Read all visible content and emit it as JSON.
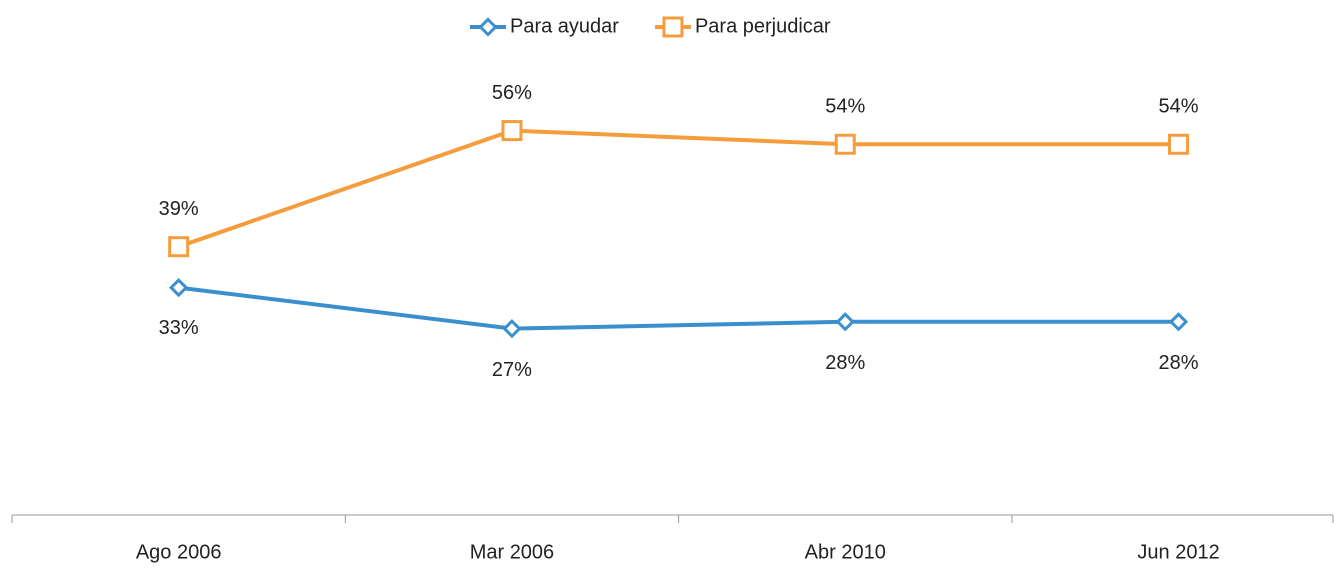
{
  "chart_data": {
    "type": "line",
    "categories": [
      "Ago 2006",
      "Mar 2006",
      "Abr 2010",
      "Jun 2012"
    ],
    "series": [
      {
        "name": "Para ayudar",
        "color": "#3a8fcf",
        "marker": "diamond",
        "values": [
          33,
          27,
          28,
          28
        ],
        "value_labels": [
          "33%",
          "27%",
          "28%",
          "28%"
        ]
      },
      {
        "name": "Para perjudicar",
        "color": "#f59d3d",
        "marker": "square",
        "values": [
          39,
          56,
          54,
          54
        ],
        "value_labels": [
          "39%",
          "56%",
          "54%",
          "54%"
        ]
      }
    ],
    "ylim": [
      0,
      70
    ],
    "legend": "top"
  }
}
